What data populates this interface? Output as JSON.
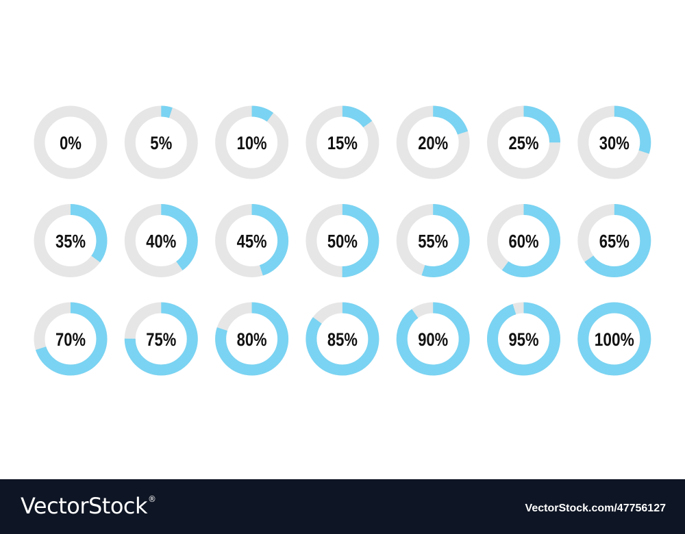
{
  "colors": {
    "track": "#e6e6e6",
    "fill": "#7ad3f2",
    "label": "#111111",
    "footer_bg": "#0e1524",
    "footer_text": "#ffffff"
  },
  "rings": [
    {
      "label": "0%",
      "value": 0
    },
    {
      "label": "5%",
      "value": 5
    },
    {
      "label": "10%",
      "value": 10
    },
    {
      "label": "15%",
      "value": 15
    },
    {
      "label": "20%",
      "value": 20
    },
    {
      "label": "25%",
      "value": 25
    },
    {
      "label": "30%",
      "value": 30
    },
    {
      "label": "35%",
      "value": 35
    },
    {
      "label": "40%",
      "value": 40
    },
    {
      "label": "45%",
      "value": 45
    },
    {
      "label": "50%",
      "value": 50
    },
    {
      "label": "55%",
      "value": 55
    },
    {
      "label": "60%",
      "value": 60
    },
    {
      "label": "65%",
      "value": 65
    },
    {
      "label": "70%",
      "value": 70
    },
    {
      "label": "75%",
      "value": 75
    },
    {
      "label": "80%",
      "value": 80
    },
    {
      "label": "85%",
      "value": 85
    },
    {
      "label": "90%",
      "value": 90
    },
    {
      "label": "95%",
      "value": 95
    },
    {
      "label": "100%",
      "value": 100
    }
  ],
  "footer": {
    "brand": "VectorStock",
    "registered": "®",
    "image_id": "VectorStock.com/47756127"
  }
}
